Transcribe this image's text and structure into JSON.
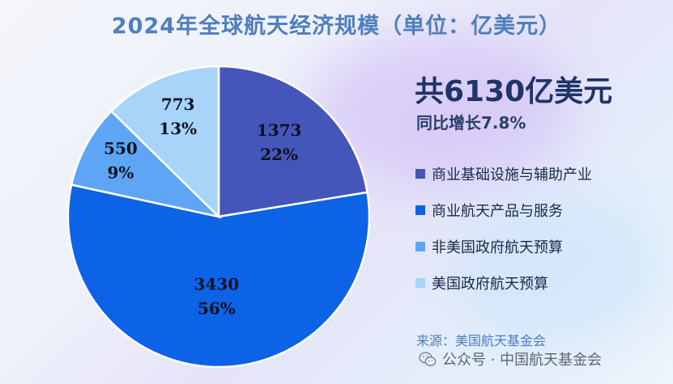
{
  "title": "2024年全球航天经济规模（单位：亿美元）",
  "total_label": "共6130亿美元",
  "growth_label": "同比增长7.8%",
  "legend": [
    {
      "label": "商业基础设施与辅助产业",
      "color": "#4456b9"
    },
    {
      "label": "商业航天产品与服务",
      "color": "#0d63e6"
    },
    {
      "label": "非美国政府航天预算",
      "color": "#5ea6f5"
    },
    {
      "label": "美国政府航天预算",
      "color": "#a9d4fa"
    }
  ],
  "source": "来源：美国航天基金会",
  "watermark": {
    "icon": "wechat-icon",
    "text": "公众号 · 中国航天基金会"
  },
  "chart_data": {
    "type": "pie",
    "title": "2024年全球航天经济规模（单位：亿美元）",
    "unit": "亿美元",
    "total": 6130,
    "slices": [
      {
        "name": "商业基础设施与辅助产业",
        "value": 1373,
        "value_label": "1373",
        "percent_label": "22%",
        "color": "#4456b9"
      },
      {
        "name": "商业航天产品与服务",
        "value": 3430,
        "value_label": "3430",
        "percent_label": "56%",
        "color": "#0d63e6"
      },
      {
        "name": "非美国政府航天预算",
        "value": 550,
        "value_label": "550",
        "percent_label": "9%",
        "color": "#5ea6f5"
      },
      {
        "name": "美国政府航天预算",
        "value": 773,
        "value_label": "773",
        "percent_label": "13%",
        "color": "#a9d4fa"
      }
    ],
    "start_angle": "12 o'clock",
    "direction": "clockwise",
    "legend_position": "right"
  }
}
